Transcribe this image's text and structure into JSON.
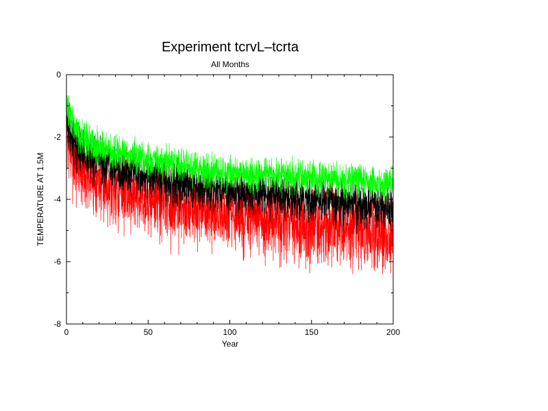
{
  "chart_data": {
    "type": "line",
    "title": "Experiment tcrvL–tcrta",
    "subtitle": "All Months",
    "xlabel": "Year",
    "ylabel": "TEMPERATURE AT 1.5M",
    "xlim": [
      0,
      200
    ],
    "ylim": [
      -8,
      0
    ],
    "x_ticks": [
      0,
      50,
      100,
      150,
      200
    ],
    "y_ticks": [
      0,
      -2,
      -4,
      -6,
      -8
    ],
    "grid": false,
    "legend": "none",
    "series": [
      {
        "name": "green",
        "color": "#00ff00",
        "x": [
          0,
          2,
          5,
          10,
          20,
          30,
          40,
          50,
          60,
          70,
          80,
          90,
          100,
          110,
          120,
          130,
          140,
          150,
          160,
          170,
          180,
          190,
          200
        ],
        "mean": [
          -0.9,
          -1.3,
          -1.7,
          -2.0,
          -2.3,
          -2.5,
          -2.6,
          -2.75,
          -2.85,
          -2.9,
          -3.0,
          -3.1,
          -3.15,
          -3.2,
          -3.2,
          -3.25,
          -3.3,
          -3.3,
          -3.35,
          -3.4,
          -3.4,
          -3.45,
          -3.5
        ],
        "range": [
          -0.6,
          -4.1
        ]
      },
      {
        "name": "black",
        "color": "#000000",
        "x": [
          0,
          2,
          5,
          10,
          20,
          30,
          40,
          50,
          60,
          70,
          80,
          90,
          100,
          110,
          120,
          130,
          140,
          150,
          160,
          170,
          180,
          190,
          200
        ],
        "mean": [
          -1.3,
          -1.8,
          -2.2,
          -2.5,
          -2.8,
          -3.0,
          -3.15,
          -3.3,
          -3.4,
          -3.5,
          -3.6,
          -3.65,
          -3.75,
          -3.8,
          -3.85,
          -3.9,
          -3.95,
          -4.0,
          -4.05,
          -4.1,
          -4.15,
          -4.2,
          -4.3
        ],
        "range": [
          -0.8,
          -5.3
        ]
      },
      {
        "name": "red",
        "color": "#ff0000",
        "x": [
          0,
          2,
          5,
          10,
          20,
          30,
          40,
          50,
          60,
          70,
          80,
          90,
          100,
          110,
          120,
          130,
          140,
          150,
          160,
          170,
          180,
          190,
          200
        ],
        "mean": [
          -1.8,
          -2.4,
          -2.8,
          -3.1,
          -3.4,
          -3.6,
          -3.8,
          -3.95,
          -4.1,
          -4.2,
          -4.35,
          -4.45,
          -4.55,
          -4.6,
          -4.7,
          -4.75,
          -4.8,
          -4.85,
          -4.9,
          -4.95,
          -5.0,
          -5.05,
          -5.1
        ],
        "range": [
          -0.6,
          -6.6
        ]
      }
    ]
  }
}
